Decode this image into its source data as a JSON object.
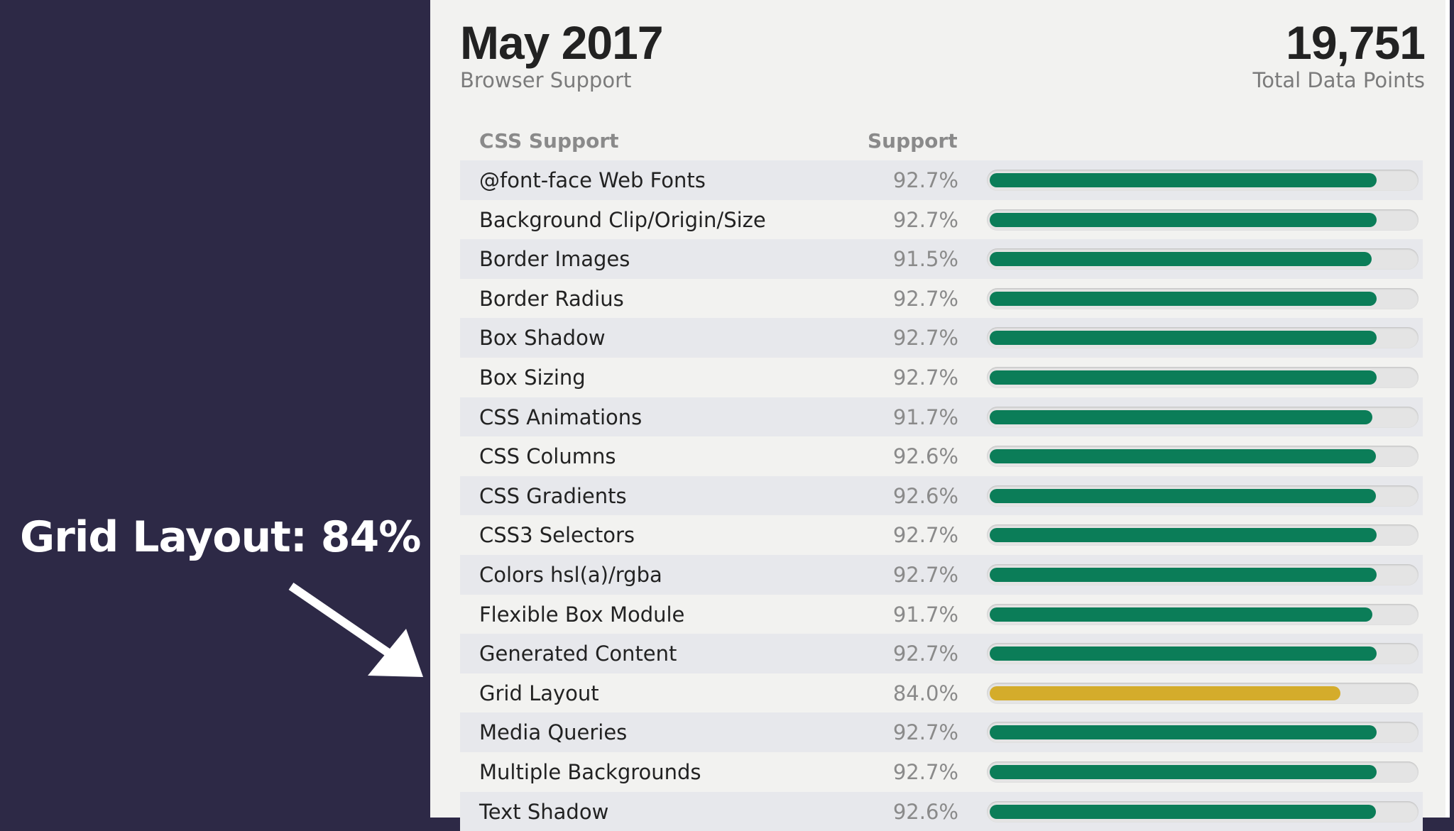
{
  "annotation": {
    "label": "Grid Layout: 84%"
  },
  "header": {
    "title": "May 2017",
    "subtitle": "Browser Support",
    "total_value": "19,751",
    "total_label": "Total Data Points"
  },
  "table": {
    "col_feature": "CSS Support",
    "col_support": "Support",
    "rows": [
      {
        "name": "@font-face Web Fonts",
        "pct_text": "92.7%",
        "value": 92.7
      },
      {
        "name": "Background Clip/Origin/Size",
        "pct_text": "92.7%",
        "value": 92.7
      },
      {
        "name": "Border Images",
        "pct_text": "91.5%",
        "value": 91.5
      },
      {
        "name": "Border Radius",
        "pct_text": "92.7%",
        "value": 92.7
      },
      {
        "name": "Box Shadow",
        "pct_text": "92.7%",
        "value": 92.7
      },
      {
        "name": "Box Sizing",
        "pct_text": "92.7%",
        "value": 92.7
      },
      {
        "name": "CSS Animations",
        "pct_text": "91.7%",
        "value": 91.7
      },
      {
        "name": "CSS Columns",
        "pct_text": "92.6%",
        "value": 92.6
      },
      {
        "name": "CSS Gradients",
        "pct_text": "92.6%",
        "value": 92.6
      },
      {
        "name": "CSS3 Selectors",
        "pct_text": "92.7%",
        "value": 92.7
      },
      {
        "name": "Colors hsl(a)/rgba",
        "pct_text": "92.7%",
        "value": 92.7
      },
      {
        "name": "Flexible Box Module",
        "pct_text": "91.7%",
        "value": 91.7
      },
      {
        "name": "Generated Content",
        "pct_text": "92.7%",
        "value": 92.7
      },
      {
        "name": "Grid Layout",
        "pct_text": "84.0%",
        "value": 84.0
      },
      {
        "name": "Media Queries",
        "pct_text": "92.7%",
        "value": 92.7
      },
      {
        "name": "Multiple Backgrounds",
        "pct_text": "92.7%",
        "value": 92.7
      },
      {
        "name": "Text Shadow",
        "pct_text": "92.6%",
        "value": 92.6
      }
    ]
  },
  "colors": {
    "good": "#0b7d58",
    "warning": "#d4ac2b",
    "sidebar_bg": "#2d2946"
  }
}
